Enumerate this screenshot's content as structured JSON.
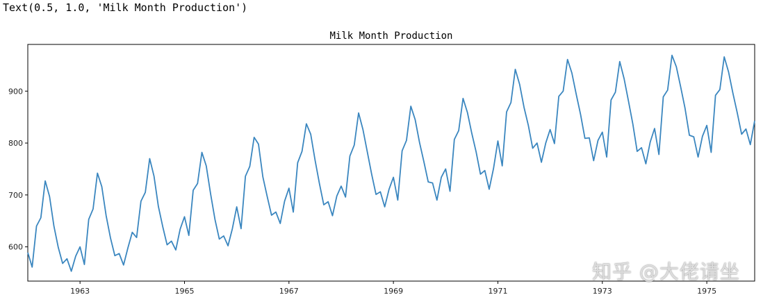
{
  "output": {
    "text": "Text(0.5, 1.0, 'Milk Month Production')"
  },
  "watermark": {
    "text": "知乎 @大佬请坐"
  },
  "chart_data": {
    "type": "line",
    "title": "Milk Month Production",
    "xlabel": "",
    "ylabel": "",
    "x_start": "1962-01",
    "x_end": "1975-12",
    "x_range": [
      "1962-01",
      "1975-12"
    ],
    "ylim": [
      534,
      990
    ],
    "x_ticks": [
      "1963",
      "1965",
      "1967",
      "1969",
      "1971",
      "1973",
      "1975"
    ],
    "y_ticks": [
      600,
      700,
      800,
      900
    ],
    "grid": false,
    "legend": "none",
    "line_color": "#3a86bf",
    "series": [
      {
        "values": [
          589,
          561,
          640,
          656,
          727,
          697,
          640,
          599,
          568,
          577,
          553,
          582,
          600,
          566,
          653,
          673,
          742,
          716,
          660,
          617,
          583,
          587,
          565,
          598,
          628,
          618,
          688,
          705,
          770,
          736,
          678,
          639,
          604,
          611,
          594,
          634,
          658,
          622,
          709,
          722,
          782,
          756,
          702,
          653,
          615,
          621,
          602,
          635,
          677,
          635,
          736,
          755,
          811,
          798,
          735,
          697,
          661,
          667,
          645,
          688,
          713,
          667,
          762,
          784,
          837,
          817,
          767,
          722,
          681,
          687,
          660,
          698,
          717,
          696,
          775,
          796,
          858,
          826,
          783,
          740,
          701,
          706,
          677,
          711,
          734,
          690,
          785,
          805,
          871,
          845,
          801,
          764,
          725,
          723,
          690,
          734,
          750,
          707,
          807,
          824,
          886,
          859,
          819,
          783,
          740,
          747,
          711,
          751,
          804,
          756,
          860,
          878,
          942,
          913,
          869,
          834,
          790,
          800,
          763,
          800,
          826,
          799,
          890,
          900,
          961,
          935,
          894,
          855,
          809,
          810,
          766,
          805,
          821,
          773,
          883,
          898,
          957,
          924,
          881,
          837,
          784,
          791,
          760,
          802,
          828,
          778,
          889,
          902,
          969,
          947,
          908,
          867,
          815,
          812,
          773,
          813,
          834,
          782,
          892,
          903,
          966,
          937,
          896,
          858,
          817,
          827,
          797,
          843
        ]
      }
    ]
  }
}
